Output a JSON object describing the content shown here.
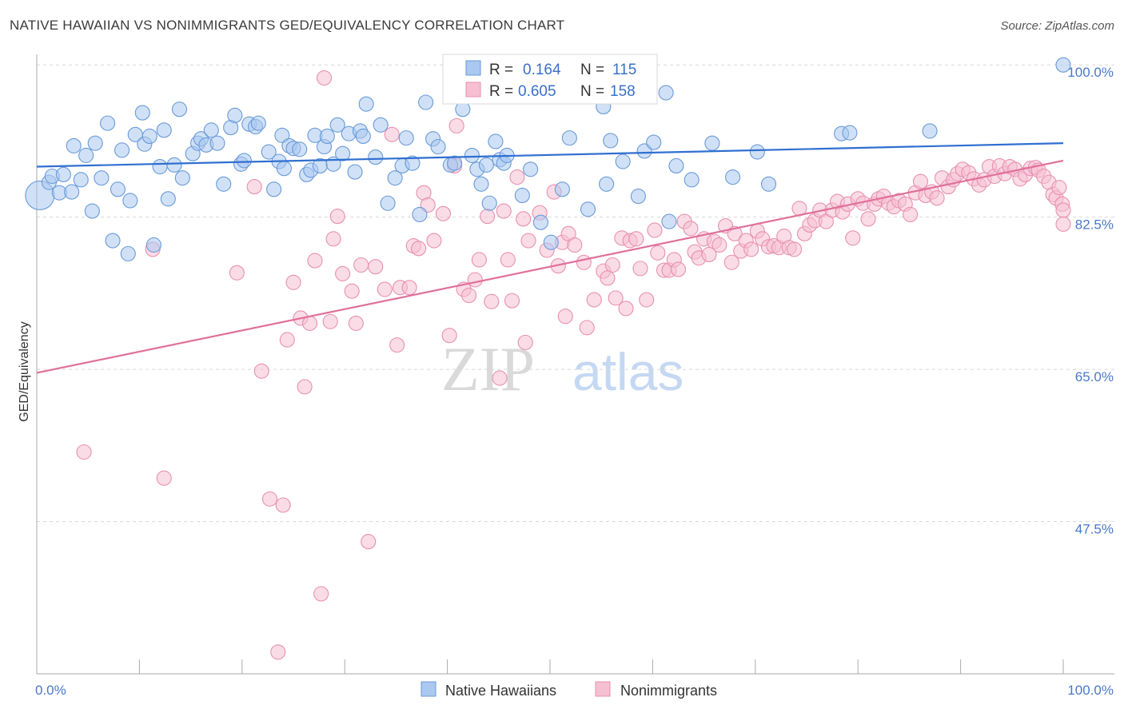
{
  "header": {
    "title": "NATIVE HAWAIIAN VS NONIMMIGRANTS GED/EQUIVALENCY CORRELATION CHART",
    "source": "Source: ZipAtlas.com"
  },
  "watermark": {
    "zip": "ZIP",
    "atlas": "atlas"
  },
  "colors": {
    "blue_fill": "#aac8f0",
    "blue_stroke": "#6a9ad8",
    "blue_line": "#2f6fd0",
    "pink_fill": "#f6bfd2",
    "pink_stroke": "#e890b0",
    "pink_line": "#e0709a",
    "grid": "#d8d8d8",
    "tick_text": "#4a78c8"
  },
  "legend": {
    "rows": [
      {
        "r_label": "R =",
        "r_value": "0.164",
        "n_label": "N =",
        "n_value": "115"
      },
      {
        "r_label": "R =",
        "r_value": "0.605",
        "n_label": "N =",
        "n_value": "158"
      }
    ]
  },
  "bottom_legend": {
    "items": [
      "Native Hawaiians",
      "Nonimmigrants"
    ]
  },
  "chart_data": {
    "type": "scatter",
    "xlabel": "",
    "ylabel": "GED/Equivalency",
    "xlim": [
      0,
      100
    ],
    "ylim": [
      30,
      102.5
    ],
    "x_tick_labels": [
      "0.0%",
      "100.0%"
    ],
    "y_ticks": [
      47.5,
      65.0,
      82.5,
      100.0
    ],
    "y_tick_labels": [
      "47.5%",
      "65.0%",
      "82.5%",
      "100.0%"
    ],
    "grid": "horizontal dashed",
    "legend_position": "top-center",
    "series": [
      {
        "name": "Native Hawaiians",
        "trend": {
          "x": [
            0,
            100
          ],
          "y": [
            88.3,
            91.0
          ]
        },
        "points": [
          [
            0.3,
            85.0
          ],
          [
            1.2,
            86.5
          ],
          [
            1.5,
            87.2
          ],
          [
            2.2,
            85.3
          ],
          [
            2.6,
            87.4
          ],
          [
            3.4,
            85.4
          ],
          [
            3.6,
            90.7
          ],
          [
            4.3,
            86.8
          ],
          [
            4.8,
            89.6
          ],
          [
            5.4,
            83.2
          ],
          [
            5.7,
            91.0
          ],
          [
            6.3,
            87.0
          ],
          [
            6.9,
            93.3
          ],
          [
            7.4,
            79.8
          ],
          [
            7.9,
            85.7
          ],
          [
            8.3,
            90.2
          ],
          [
            8.9,
            78.3
          ],
          [
            9.1,
            84.4
          ],
          [
            9.6,
            92.0
          ],
          [
            10.3,
            94.5
          ],
          [
            10.5,
            90.9
          ],
          [
            11.0,
            91.8
          ],
          [
            11.4,
            79.3
          ],
          [
            12.0,
            88.3
          ],
          [
            12.4,
            92.5
          ],
          [
            12.8,
            84.6
          ],
          [
            13.4,
            88.5
          ],
          [
            13.9,
            94.9
          ],
          [
            14.2,
            87.0
          ],
          [
            15.2,
            89.8
          ],
          [
            15.7,
            91.0
          ],
          [
            16.0,
            91.5
          ],
          [
            16.5,
            90.8
          ],
          [
            17.0,
            92.5
          ],
          [
            17.6,
            91.0
          ],
          [
            18.2,
            86.3
          ],
          [
            18.9,
            92.8
          ],
          [
            19.3,
            94.2
          ],
          [
            19.9,
            88.6
          ],
          [
            20.2,
            89.0
          ],
          [
            20.7,
            93.2
          ],
          [
            21.3,
            92.9
          ],
          [
            21.6,
            93.3
          ],
          [
            22.6,
            90.0
          ],
          [
            23.1,
            85.7
          ],
          [
            23.6,
            88.9
          ],
          [
            23.9,
            91.9
          ],
          [
            24.1,
            88.1
          ],
          [
            24.6,
            90.7
          ],
          [
            25.0,
            90.4
          ],
          [
            25.6,
            90.3
          ],
          [
            26.3,
            87.4
          ],
          [
            26.7,
            87.9
          ],
          [
            27.1,
            91.9
          ],
          [
            27.6,
            88.4
          ],
          [
            28.0,
            90.6
          ],
          [
            28.3,
            91.8
          ],
          [
            28.9,
            88.6
          ],
          [
            29.3,
            93.1
          ],
          [
            29.8,
            89.8
          ],
          [
            30.4,
            92.1
          ],
          [
            31.0,
            87.7
          ],
          [
            31.5,
            92.4
          ],
          [
            31.8,
            91.8
          ],
          [
            32.1,
            95.5
          ],
          [
            33.0,
            89.4
          ],
          [
            33.5,
            93.1
          ],
          [
            34.2,
            84.1
          ],
          [
            34.9,
            87.0
          ],
          [
            35.6,
            88.4
          ],
          [
            36.0,
            91.6
          ],
          [
            36.6,
            88.7
          ],
          [
            37.3,
            82.8
          ],
          [
            37.9,
            95.7
          ],
          [
            38.6,
            91.5
          ],
          [
            39.1,
            90.6
          ],
          [
            40.3,
            88.5
          ],
          [
            40.7,
            88.7
          ],
          [
            41.5,
            94.9
          ],
          [
            42.4,
            89.6
          ],
          [
            42.9,
            88.0
          ],
          [
            43.3,
            86.3
          ],
          [
            43.8,
            88.5
          ],
          [
            44.1,
            84.1
          ],
          [
            44.7,
            91.2
          ],
          [
            45.1,
            89.1
          ],
          [
            45.5,
            88.7
          ],
          [
            45.8,
            89.6
          ],
          [
            47.3,
            85.0
          ],
          [
            48.1,
            88.0
          ],
          [
            49.1,
            81.9
          ],
          [
            50.1,
            79.6
          ],
          [
            51.2,
            85.7
          ],
          [
            51.9,
            91.6
          ],
          [
            52.5,
            100.0
          ],
          [
            53.7,
            83.4
          ],
          [
            55.2,
            95.2
          ],
          [
            55.5,
            86.3
          ],
          [
            55.9,
            91.3
          ],
          [
            57.1,
            88.9
          ],
          [
            58.6,
            84.9
          ],
          [
            59.2,
            90.1
          ],
          [
            60.1,
            91.1
          ],
          [
            61.3,
            96.8
          ],
          [
            61.6,
            82.0
          ],
          [
            62.3,
            88.4
          ],
          [
            63.8,
            86.8
          ],
          [
            65.8,
            91.0
          ],
          [
            67.8,
            87.1
          ],
          [
            70.2,
            90.0
          ],
          [
            71.3,
            86.3
          ],
          [
            78.4,
            92.1
          ],
          [
            79.2,
            92.2
          ],
          [
            87.0,
            92.4
          ],
          [
            100.0,
            100.0
          ]
        ]
      },
      {
        "name": "Nonimmigrants",
        "trend": {
          "x": [
            0,
            100
          ],
          "y": [
            64.6,
            89.0
          ]
        },
        "points": [
          [
            4.6,
            55.5
          ],
          [
            11.3,
            78.8
          ],
          [
            12.4,
            52.5
          ],
          [
            19.5,
            76.1
          ],
          [
            21.2,
            86.0
          ],
          [
            21.9,
            64.8
          ],
          [
            22.7,
            50.1
          ],
          [
            23.5,
            32.5
          ],
          [
            24.0,
            49.4
          ],
          [
            24.4,
            68.4
          ],
          [
            25.0,
            75.0
          ],
          [
            25.7,
            70.9
          ],
          [
            26.1,
            63.0
          ],
          [
            26.6,
            70.3
          ],
          [
            27.1,
            77.5
          ],
          [
            27.7,
            39.2
          ],
          [
            28.0,
            98.5
          ],
          [
            28.6,
            70.5
          ],
          [
            28.9,
            80.0
          ],
          [
            29.3,
            82.6
          ],
          [
            29.8,
            76.0
          ],
          [
            30.7,
            74.0
          ],
          [
            31.1,
            70.3
          ],
          [
            31.6,
            77.0
          ],
          [
            32.3,
            45.2
          ],
          [
            33.0,
            76.8
          ],
          [
            33.9,
            74.2
          ],
          [
            34.6,
            92.0
          ],
          [
            35.1,
            67.8
          ],
          [
            35.4,
            74.4
          ],
          [
            36.3,
            74.4
          ],
          [
            36.7,
            79.2
          ],
          [
            37.2,
            78.9
          ],
          [
            37.7,
            85.3
          ],
          [
            38.1,
            83.9
          ],
          [
            38.7,
            79.8
          ],
          [
            39.6,
            82.9
          ],
          [
            40.2,
            68.9
          ],
          [
            40.7,
            88.4
          ],
          [
            40.9,
            93.0
          ],
          [
            41.6,
            74.2
          ],
          [
            42.1,
            73.5
          ],
          [
            42.7,
            75.3
          ],
          [
            43.1,
            77.6
          ],
          [
            43.9,
            82.6
          ],
          [
            44.3,
            72.8
          ],
          [
            45.1,
            64.0
          ],
          [
            45.5,
            83.2
          ],
          [
            45.9,
            77.6
          ],
          [
            46.3,
            72.9
          ],
          [
            46.8,
            87.1
          ],
          [
            47.4,
            82.3
          ],
          [
            47.6,
            68.1
          ],
          [
            47.9,
            79.8
          ],
          [
            49.0,
            83.0
          ],
          [
            49.7,
            78.7
          ],
          [
            50.4,
            85.4
          ],
          [
            50.8,
            76.9
          ],
          [
            51.2,
            79.6
          ],
          [
            51.5,
            71.1
          ],
          [
            51.8,
            80.6
          ],
          [
            52.4,
            79.3
          ],
          [
            53.3,
            77.3
          ],
          [
            53.6,
            69.8
          ],
          [
            54.3,
            73.0
          ],
          [
            55.2,
            76.3
          ],
          [
            55.6,
            75.5
          ],
          [
            56.1,
            77.0
          ],
          [
            56.4,
            73.2
          ],
          [
            57.0,
            80.1
          ],
          [
            57.4,
            72.0
          ],
          [
            57.8,
            79.8
          ],
          [
            58.4,
            80.0
          ],
          [
            58.8,
            76.6
          ],
          [
            59.4,
            73.0
          ],
          [
            60.2,
            81.0
          ],
          [
            60.5,
            78.4
          ],
          [
            61.1,
            76.4
          ],
          [
            61.6,
            76.4
          ],
          [
            62.1,
            77.6
          ],
          [
            62.5,
            76.5
          ],
          [
            63.1,
            82.0
          ],
          [
            63.7,
            81.2
          ],
          [
            64.1,
            78.5
          ],
          [
            64.5,
            77.8
          ],
          [
            65.0,
            80.0
          ],
          [
            65.5,
            78.2
          ],
          [
            66.0,
            79.7
          ],
          [
            66.5,
            79.3
          ],
          [
            67.1,
            81.5
          ],
          [
            67.7,
            77.3
          ],
          [
            68.0,
            80.6
          ],
          [
            68.6,
            78.6
          ],
          [
            69.1,
            79.8
          ],
          [
            69.6,
            78.8
          ],
          [
            70.2,
            80.9
          ],
          [
            70.7,
            80.0
          ],
          [
            71.3,
            79.1
          ],
          [
            71.8,
            79.2
          ],
          [
            72.3,
            79.0
          ],
          [
            72.8,
            80.3
          ],
          [
            73.3,
            79.0
          ],
          [
            73.8,
            78.8
          ],
          [
            74.3,
            83.5
          ],
          [
            74.8,
            80.6
          ],
          [
            75.3,
            81.6
          ],
          [
            75.8,
            82.1
          ],
          [
            76.3,
            83.3
          ],
          [
            76.9,
            82.0
          ],
          [
            77.5,
            83.3
          ],
          [
            78.0,
            84.3
          ],
          [
            78.5,
            83.1
          ],
          [
            79.0,
            84.0
          ],
          [
            79.5,
            80.1
          ],
          [
            80.0,
            84.6
          ],
          [
            80.5,
            84.1
          ],
          [
            81.0,
            82.3
          ],
          [
            81.6,
            84.0
          ],
          [
            82.0,
            84.6
          ],
          [
            82.5,
            84.9
          ],
          [
            83.0,
            84.1
          ],
          [
            83.5,
            83.7
          ],
          [
            84.0,
            84.4
          ],
          [
            84.6,
            84.0
          ],
          [
            85.1,
            82.8
          ],
          [
            85.6,
            85.3
          ],
          [
            86.1,
            86.6
          ],
          [
            86.6,
            85.0
          ],
          [
            87.2,
            85.4
          ],
          [
            87.7,
            84.7
          ],
          [
            88.2,
            87.0
          ],
          [
            88.8,
            86.0
          ],
          [
            89.3,
            86.8
          ],
          [
            89.7,
            87.5
          ],
          [
            90.2,
            88.0
          ],
          [
            90.8,
            87.6
          ],
          [
            91.3,
            86.9
          ],
          [
            91.8,
            86.2
          ],
          [
            92.3,
            86.8
          ],
          [
            92.8,
            88.3
          ],
          [
            93.3,
            87.2
          ],
          [
            93.8,
            88.4
          ],
          [
            94.3,
            87.5
          ],
          [
            94.8,
            88.3
          ],
          [
            95.3,
            88.0
          ],
          [
            95.8,
            86.9
          ],
          [
            96.3,
            87.4
          ],
          [
            96.8,
            88.1
          ],
          [
            97.3,
            88.2
          ],
          [
            97.6,
            87.9
          ],
          [
            98.1,
            87.2
          ],
          [
            98.6,
            86.5
          ],
          [
            99.0,
            85.1
          ],
          [
            99.3,
            84.7
          ],
          [
            99.6,
            85.9
          ],
          [
            99.9,
            84.0
          ],
          [
            100.0,
            83.3
          ],
          [
            100.0,
            81.7
          ]
        ]
      }
    ]
  }
}
